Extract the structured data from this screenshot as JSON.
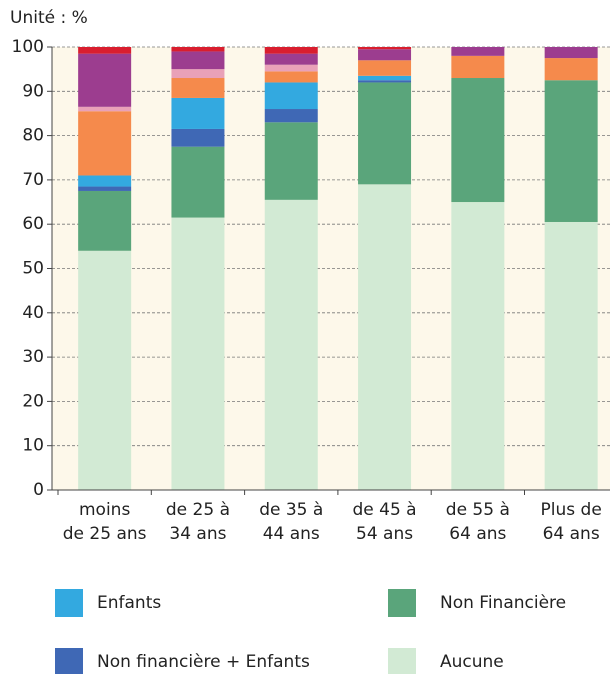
{
  "chart_data": {
    "type": "stacked_bar",
    "y_label": "Unité : %",
    "categories": [
      [
        "moins",
        "de 25 ans"
      ],
      [
        "de 25 à",
        "34 ans"
      ],
      [
        "de 35 à",
        "44 ans"
      ],
      [
        "de 45 à",
        "54 ans"
      ],
      [
        "de 55 à",
        "64 ans"
      ],
      [
        "Plus de",
        "64 ans"
      ]
    ],
    "series": [
      {
        "name": "Aucune",
        "color": "#d2ead4",
        "values": [
          54,
          61.5,
          65.5,
          69,
          65,
          60.5
        ]
      },
      {
        "name": "Non Financière",
        "color": "#5aa57b",
        "values": [
          13.5,
          16,
          17.5,
          23,
          28,
          32
        ]
      },
      {
        "name": "Non financière + Enfants",
        "color": "#3f68b5",
        "values": [
          1,
          4,
          3,
          0.5,
          0,
          0
        ]
      },
      {
        "name": "Enfants",
        "color": "#33a9e0",
        "values": [
          2.5,
          7,
          6,
          1,
          0,
          0
        ]
      },
      {
        "color": "#f58a4c",
        "values": [
          14.5,
          4.5,
          2.5,
          3.5,
          5,
          5
        ]
      },
      {
        "color": "#e9a1b8",
        "values": [
          1,
          2,
          1.5,
          0,
          0,
          0
        ]
      },
      {
        "color": "#9c3d8f",
        "values": [
          12,
          4,
          2.5,
          2.5,
          2,
          2.5
        ]
      },
      {
        "color": "#d91e2e",
        "values": [
          1.5,
          1,
          1.5,
          0.5,
          0,
          0
        ]
      }
    ],
    "ylim": [
      0,
      100
    ],
    "yticks": [
      0,
      10,
      20,
      30,
      40,
      50,
      60,
      70,
      80,
      90,
      100
    ],
    "grid": true
  }
}
